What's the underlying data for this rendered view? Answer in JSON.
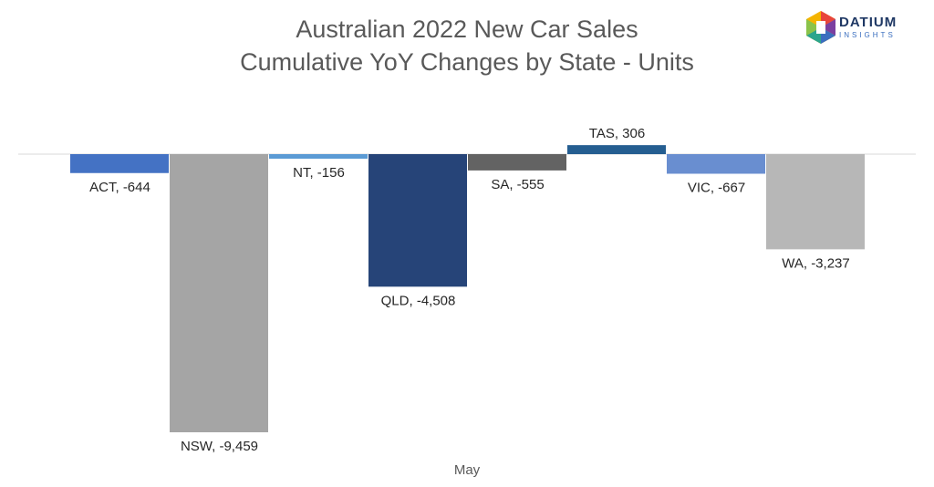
{
  "title": "Australian 2022 New Car Sales",
  "subtitle": "Cumulative YoY Changes by State - Units",
  "logo": {
    "name": "DATIUM",
    "tagline": "INSIGHTS"
  },
  "chart_data": {
    "type": "bar",
    "categories": [
      "May"
    ],
    "xlabel": "May",
    "series": [
      {
        "name": "ACT",
        "value": -644,
        "label": "ACT, -644",
        "color": "#4472c4"
      },
      {
        "name": "NSW",
        "value": -9459,
        "label": "NSW, -9,459",
        "color": "#a5a5a5"
      },
      {
        "name": "NT",
        "value": -156,
        "label": "NT, -156",
        "color": "#5b9bd5"
      },
      {
        "name": "QLD",
        "value": -4508,
        "label": "QLD, -4,508",
        "color": "#264478"
      },
      {
        "name": "SA",
        "value": -555,
        "label": "SA, -555",
        "color": "#636363"
      },
      {
        "name": "TAS",
        "value": 306,
        "label": "TAS, 306",
        "color": "#255e91"
      },
      {
        "name": "VIC",
        "value": -667,
        "label": "VIC, -667",
        "color": "#698ed0"
      },
      {
        "name": "WA",
        "value": -3237,
        "label": "WA, -3,237",
        "color": "#b7b7b7"
      }
    ],
    "gridlines": false,
    "legend": "none"
  }
}
